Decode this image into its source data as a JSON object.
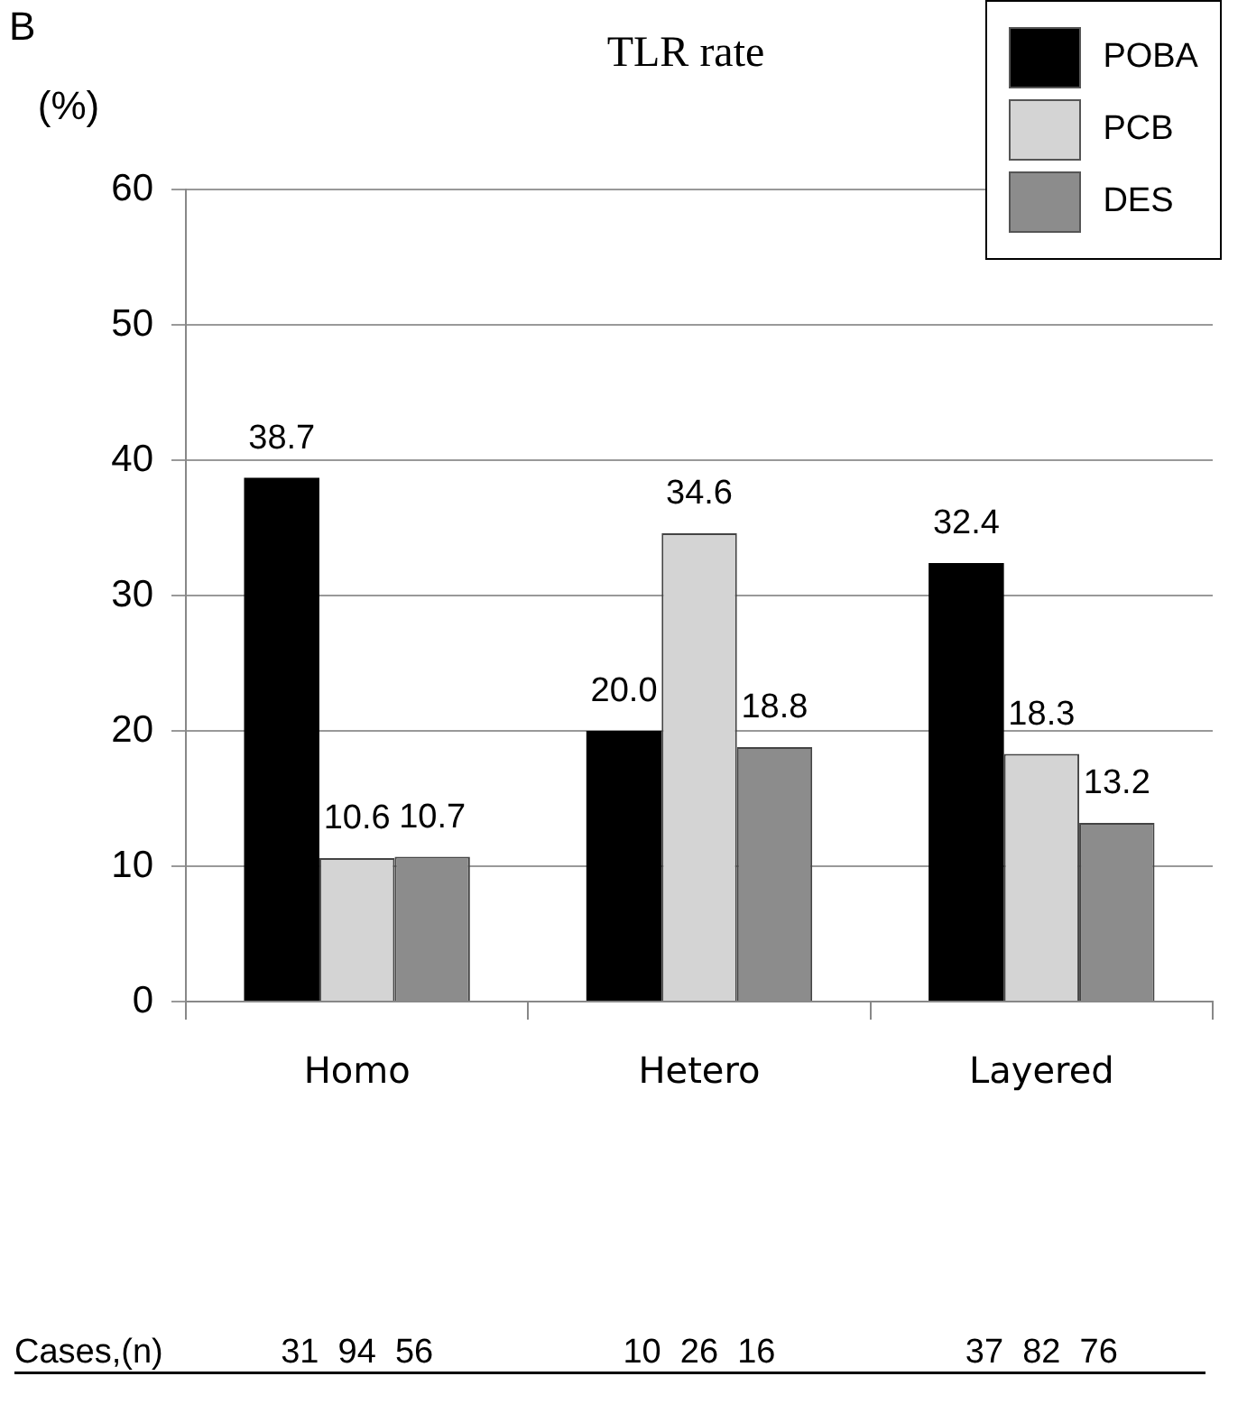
{
  "chart_data": {
    "type": "bar",
    "title": "TLR rate",
    "ylabel": "(%)",
    "categories": [
      "Homo",
      "Hetero",
      "Layered"
    ],
    "series": [
      {
        "name": "POBA",
        "color": "#000000",
        "values": [
          38.7,
          20.0,
          32.4
        ],
        "value_labels": [
          "38.7",
          "20.0",
          "32.4"
        ]
      },
      {
        "name": "PCB",
        "color": "#d4d4d4",
        "values": [
          10.6,
          34.6,
          18.3
        ],
        "value_labels": [
          "10.6",
          "34.6",
          "18.3"
        ]
      },
      {
        "name": "DES",
        "color": "#8c8c8c",
        "values": [
          10.7,
          18.8,
          13.2
        ],
        "value_labels": [
          "10.7",
          "18.8",
          "13.2"
        ]
      }
    ],
    "ylim": [
      0,
      60
    ],
    "yticks": [
      0,
      10,
      20,
      30,
      40,
      50,
      60
    ],
    "grid": "y",
    "legend": "top right",
    "annotations": [
      "B",
      "Cases,(n)",
      "31  94  56",
      "10  26  16",
      "37  82  76"
    ]
  }
}
